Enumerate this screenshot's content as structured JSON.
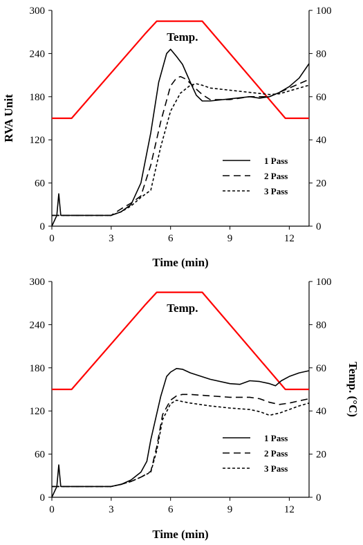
{
  "colors": {
    "axis": "#000000",
    "temperature": "#ff0000",
    "series": "#000000"
  },
  "chart_data": [
    {
      "type": "line",
      "title": "",
      "xlabel": "Time (min)",
      "ylabel": "RVA Unit",
      "y2label": "",
      "xlim": [
        0,
        13
      ],
      "ylim": [
        0,
        300
      ],
      "y2lim": [
        0,
        100
      ],
      "xticks": [
        0,
        3,
        6,
        9,
        12
      ],
      "yticks": [
        0,
        60,
        120,
        180,
        240,
        300
      ],
      "y2ticks": [
        0,
        20,
        40,
        60,
        80,
        100
      ],
      "grid": false,
      "legend_position": "bottom-right",
      "annotation": "Temp.",
      "temperature": {
        "label": "Temp.",
        "axis": "right",
        "x": [
          0,
          1.0,
          4.7,
          5.3,
          7.6,
          11.8,
          13.0
        ],
        "y": [
          50,
          50,
          89,
          95,
          95,
          50,
          50
        ]
      },
      "series": [
        {
          "name": "1 Pass",
          "dash": "solid",
          "x": [
            0,
            0.25,
            0.35,
            0.45,
            0.55,
            1.0,
            2.0,
            3.0,
            3.5,
            4.0,
            4.5,
            5.0,
            5.4,
            5.8,
            6.0,
            6.3,
            6.6,
            7.0,
            7.3,
            7.6,
            8.0,
            9.0,
            10.0,
            10.5,
            11.0,
            11.5,
            12.0,
            12.5,
            13.0
          ],
          "y": [
            0,
            15,
            45,
            15,
            15,
            15,
            15,
            15,
            20,
            30,
            60,
            130,
            200,
            240,
            246,
            236,
            225,
            200,
            182,
            174,
            174,
            177,
            180,
            178,
            180,
            186,
            194,
            206,
            226
          ]
        },
        {
          "name": "2 Pass",
          "dash": "long",
          "x": [
            0,
            1.0,
            2.0,
            3.0,
            3.5,
            4.0,
            4.5,
            5.0,
            5.5,
            6.0,
            6.3,
            6.5,
            6.8,
            7.2,
            7.6,
            8.0,
            9.0,
            10.0,
            11.0,
            11.5,
            12.0,
            12.5,
            13.0
          ],
          "y": [
            15,
            15,
            15,
            15,
            24,
            32,
            42,
            85,
            145,
            195,
            206,
            208,
            204,
            193,
            183,
            176,
            176,
            180,
            180,
            186,
            192,
            198,
            204
          ]
        },
        {
          "name": "3 Pass",
          "dash": "short",
          "x": [
            0,
            1.0,
            2.0,
            3.0,
            3.5,
            4.0,
            4.5,
            5.0,
            5.5,
            6.0,
            6.5,
            7.0,
            7.3,
            7.6,
            8.0,
            9.0,
            10.0,
            11.0,
            11.5,
            12.0,
            12.5,
            13.0
          ],
          "y": [
            15,
            15,
            15,
            15,
            20,
            28,
            40,
            50,
            110,
            160,
            185,
            196,
            198,
            196,
            192,
            189,
            186,
            183,
            184,
            188,
            192,
            196
          ]
        }
      ]
    },
    {
      "type": "line",
      "title": "",
      "xlabel": "Time (min)",
      "ylabel": "",
      "y2label": "Temp. (°C)",
      "xlim": [
        0,
        13
      ],
      "ylim": [
        0,
        300
      ],
      "y2lim": [
        0,
        100
      ],
      "xticks": [
        0,
        3,
        6,
        9,
        12
      ],
      "yticks": [
        0,
        60,
        120,
        180,
        240,
        300
      ],
      "y2ticks": [
        0,
        20,
        40,
        60,
        80,
        100
      ],
      "grid": false,
      "legend_position": "bottom-right",
      "annotation": "Temp.",
      "temperature": {
        "label": "Temp.",
        "axis": "right",
        "x": [
          0,
          1.0,
          4.7,
          5.3,
          7.6,
          11.8,
          13.0
        ],
        "y": [
          50,
          50,
          89,
          95,
          95,
          50,
          50
        ]
      },
      "series": [
        {
          "name": "1 Pass",
          "dash": "solid",
          "x": [
            0,
            0.25,
            0.35,
            0.45,
            0.55,
            1.0,
            2.0,
            3.0,
            3.5,
            4.0,
            4.5,
            4.8,
            5.0,
            5.5,
            5.8,
            6.0,
            6.3,
            6.6,
            7.0,
            8.0,
            9.0,
            9.5,
            10.0,
            10.5,
            11.0,
            11.3,
            11.6,
            12.0,
            12.5,
            13.0
          ],
          "y": [
            0,
            15,
            45,
            15,
            15,
            15,
            15,
            15,
            18,
            24,
            35,
            50,
            80,
            140,
            168,
            174,
            179,
            178,
            173,
            164,
            158,
            157,
            162,
            161,
            158,
            155,
            162,
            168,
            173,
            176
          ]
        },
        {
          "name": "2 Pass",
          "dash": "long",
          "x": [
            0,
            1.0,
            2.0,
            3.0,
            3.5,
            4.0,
            4.5,
            5.0,
            5.3,
            5.6,
            6.0,
            6.3,
            6.6,
            7.0,
            8.0,
            9.0,
            10.0,
            10.5,
            11.0,
            11.5,
            12.0,
            12.5,
            13.0
          ],
          "y": [
            15,
            15,
            15,
            15,
            18,
            22,
            28,
            36,
            70,
            115,
            135,
            141,
            143,
            143,
            141,
            139,
            139,
            137,
            132,
            129,
            131,
            134,
            137
          ]
        },
        {
          "name": "3 Pass",
          "dash": "short",
          "x": [
            0,
            1.0,
            2.0,
            3.0,
            3.5,
            4.0,
            4.5,
            5.0,
            5.3,
            5.6,
            6.0,
            6.3,
            6.6,
            7.0,
            8.0,
            9.0,
            10.0,
            10.5,
            11.0,
            11.5,
            12.0,
            12.5,
            13.0
          ],
          "y": [
            15,
            15,
            15,
            15,
            18,
            22,
            28,
            35,
            65,
            108,
            130,
            135,
            133,
            131,
            127,
            124,
            122,
            119,
            114,
            117,
            122,
            127,
            131
          ]
        }
      ]
    }
  ]
}
